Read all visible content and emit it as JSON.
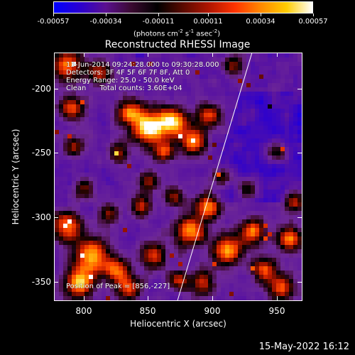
{
  "colorbar": {
    "tick_labels": [
      "-0.00057",
      "-0.00034",
      "-0.00011",
      "0.00011",
      "0.00034",
      "0.00057"
    ],
    "tick_values": [
      -0.00057,
      -0.00034,
      -0.00011,
      0.00011,
      0.00034,
      0.00057
    ],
    "units_text": "(photons cm",
    "units_sup1": "-2",
    "units_mid1": " s",
    "units_sup2": "-1",
    "units_mid2": " asec",
    "units_sup3": "-2",
    "units_end": ")",
    "colors": [
      "#0000ff",
      "#2a00d0",
      "#5a1090",
      "#3a0a30",
      "#000000",
      "#5a0a00",
      "#b01500",
      "#ff3300",
      "#ff8800",
      "#ffcc00",
      "#ffffff"
    ]
  },
  "title": "Reconstructed RHESSI Image",
  "annotations": {
    "time_range": "13-Jun-2014 09:24:28.000 to 09:30:28.000",
    "detectors": "Detectors: 3F 4F 5F 6F 7F 8F, Att 0",
    "energy": "Energy Range: 25.0 - 50.0 keV",
    "method": "Clean      Total counts: 3.60E+04",
    "peak": "Position of Peak = [856,-227]"
  },
  "axes": {
    "xlabel": "Heliocentric X (arcsec)",
    "ylabel": "Heliocentric Y (arcsec)",
    "xrange": [
      777,
      970
    ],
    "yrange": [
      -365,
      -172
    ],
    "xticks": [
      800,
      850,
      900,
      950
    ],
    "xtick_labels": [
      "800",
      "850",
      "900",
      "950"
    ],
    "yticks": [
      -200,
      -250,
      -300,
      -350
    ],
    "ytick_labels": [
      "-200",
      "-250",
      "-300",
      "-350"
    ]
  },
  "limb_line": {
    "x": [
      873,
      931
    ],
    "y": [
      -365,
      -172
    ]
  },
  "timestamp": "15-May-2022 16:12",
  "chart_data": {
    "type": "heatmap",
    "title": "Reconstructed RHESSI Image",
    "xlabel": "Heliocentric X (arcsec)",
    "ylabel": "Heliocentric Y (arcsec)",
    "xlim": [
      777,
      970
    ],
    "ylim": [
      -365,
      -172
    ],
    "colorbar_range": [
      -0.00057,
      0.00057
    ],
    "peak": [
      856,
      -227
    ]
  }
}
